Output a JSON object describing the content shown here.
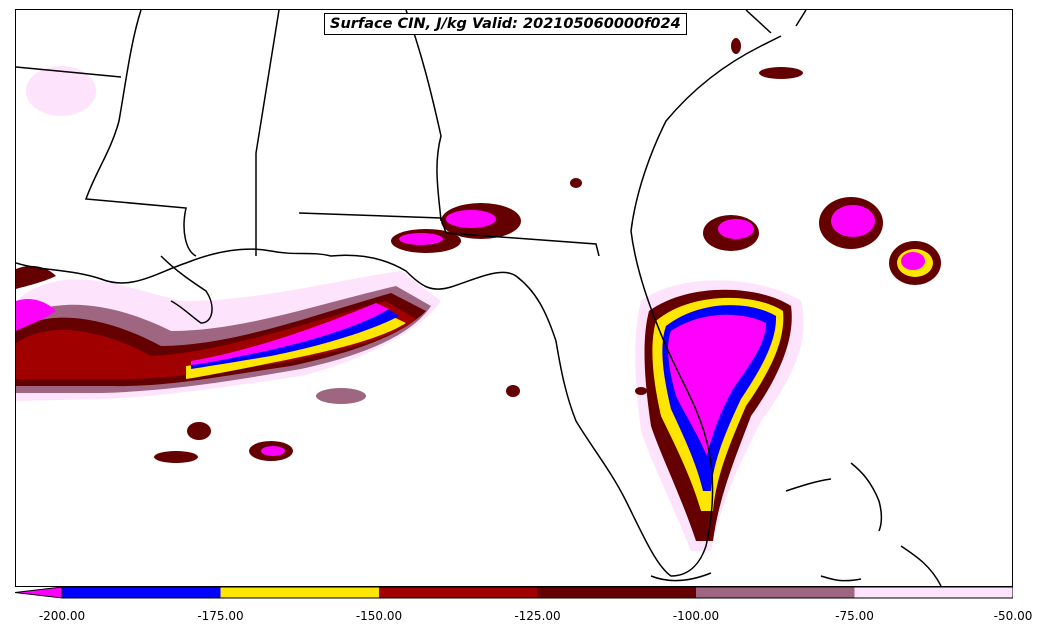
{
  "title": "Surface CIN, J/kg Valid: 202105060000f024",
  "colors": {
    "lt200": "#ff00ff",
    "b200_175": "#0000ff",
    "b175_150": "#ffe600",
    "b150_125": "#a00000",
    "b125_100": "#640000",
    "b100_75": "#9e6680",
    "b75_50": "#fde3fc",
    "coast": "#000000"
  },
  "colorbar": {
    "extend": "min",
    "ticks": [
      "-200.00",
      "-175.00",
      "-150.00",
      "-125.00",
      "-100.00",
      "-75.00",
      "-50.00"
    ]
  }
}
